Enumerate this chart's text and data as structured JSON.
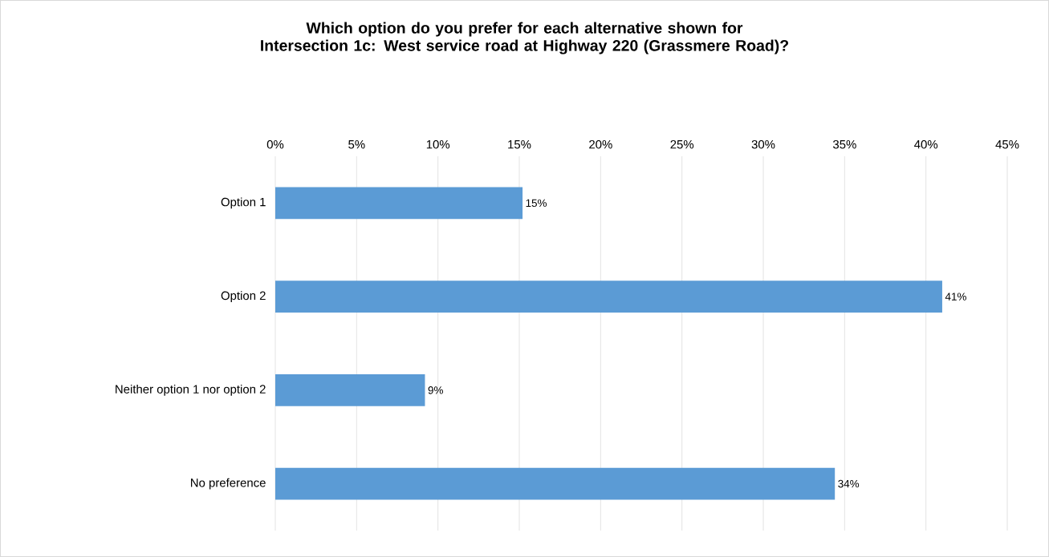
{
  "chart_data": {
    "type": "bar",
    "orientation": "horizontal",
    "title": "Which option do you prefer for each alternative shown for Intersection 1c: West service road at Highway 220 (Grassmere Road)?",
    "categories": [
      "Option 1",
      "Option 2",
      "Neither option 1 nor option 2",
      "No preference"
    ],
    "values": [
      15.2,
      41.0,
      9.2,
      34.4
    ],
    "value_labels": [
      "15%",
      "41%",
      "9%",
      "34%"
    ],
    "color": "#5b9bd5",
    "xlim": [
      0,
      45
    ],
    "xticks": [
      {
        "value": 0,
        "label": "0%"
      },
      {
        "value": 5,
        "label": "5%"
      },
      {
        "value": 10,
        "label": "10%"
      },
      {
        "value": 15,
        "label": "15%"
      },
      {
        "value": 20,
        "label": "20%"
      },
      {
        "value": 25,
        "label": "25%"
      },
      {
        "value": 30,
        "label": "30%"
      },
      {
        "value": 35,
        "label": "35%"
      },
      {
        "value": 40,
        "label": "40%"
      },
      {
        "value": 45,
        "label": "45%"
      }
    ],
    "grid": "x"
  }
}
